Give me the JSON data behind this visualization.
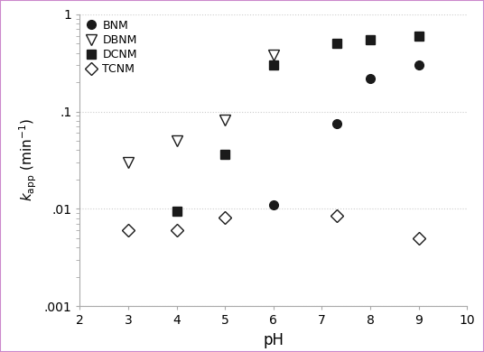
{
  "title": "",
  "xlabel": "pH",
  "xlim": [
    2,
    10
  ],
  "ylim": [
    0.001,
    1
  ],
  "series": [
    {
      "label": "BNM",
      "x": [
        6,
        7.3,
        8,
        9
      ],
      "y": [
        0.011,
        0.075,
        0.22,
        0.3
      ],
      "marker": "o",
      "markersize": 7,
      "fillstyle": "full"
    },
    {
      "label": "DBNM",
      "x": [
        3,
        4,
        5,
        6
      ],
      "y": [
        0.03,
        0.05,
        0.082,
        0.38
      ],
      "marker": "v",
      "markersize": 8,
      "fillstyle": "none"
    },
    {
      "label": "DCNM",
      "x": [
        4,
        5,
        6,
        7.3,
        8,
        9
      ],
      "y": [
        0.0095,
        0.036,
        0.3,
        0.5,
        0.55,
        0.6
      ],
      "marker": "s",
      "markersize": 7,
      "fillstyle": "full"
    },
    {
      "label": "TCNM",
      "x": [
        3,
        4,
        5,
        7.3,
        9
      ],
      "y": [
        0.006,
        0.006,
        0.0082,
        0.0085,
        0.005
      ],
      "marker": "D",
      "markersize": 7,
      "fillstyle": "none"
    }
  ],
  "xticks": [
    2,
    3,
    4,
    5,
    6,
    7,
    8,
    9,
    10
  ],
  "xtick_labels": [
    "2",
    "3",
    "4",
    "5",
    "6",
    "7",
    "8",
    "9",
    "10"
  ],
  "ytick_labels": {
    "0.001": ".001",
    "0.01": ".01",
    "0.1": ".1",
    "1": "1"
  },
  "marker_color": "#1a1a1a",
  "spine_color": "#aaaaaa",
  "border_color": "#cc88cc",
  "grid_color": "#cccccc",
  "background_color": "#ffffff"
}
